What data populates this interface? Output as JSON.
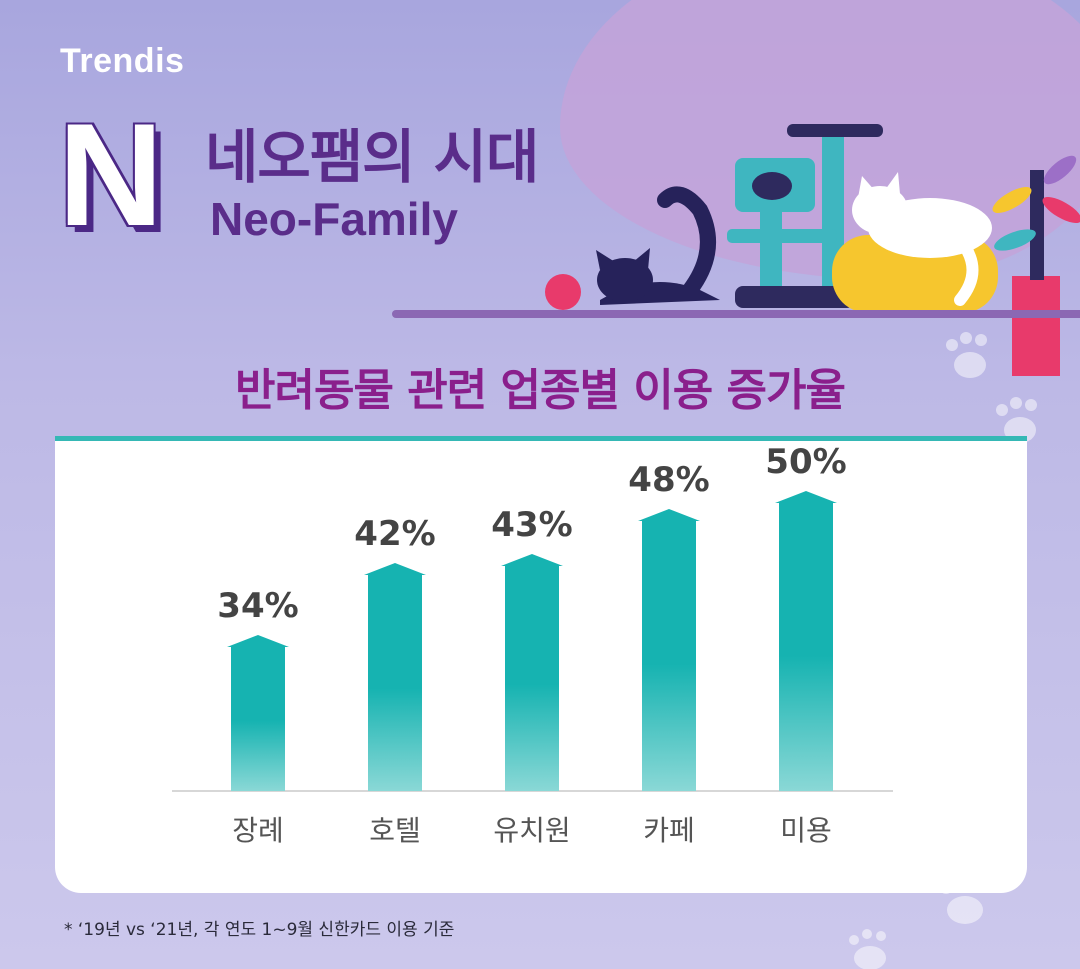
{
  "brand": "Trendis",
  "headline": {
    "letter": "N",
    "title_ko": "네오팸의 시대",
    "title_en": "Neo-Family"
  },
  "chart_data": {
    "type": "bar",
    "title": "반려동물 관련 업종별 이용 증가율",
    "categories": [
      "장례",
      "호텔",
      "유치원",
      "카페",
      "미용"
    ],
    "values": [
      34,
      42,
      43,
      48,
      50
    ],
    "value_labels": [
      "34%",
      "42%",
      "43%",
      "48%",
      "50%"
    ],
    "unit": "%",
    "ylim": [
      0,
      50
    ],
    "grid": false,
    "legend": "none",
    "bar_color_top": "#16b3b1",
    "bar_color_bottom": "#8ad8d6"
  },
  "footnote": "* ‘19년 vs ‘21년, 각 연도 1~9월 신한카드 이용 기준",
  "colors": {
    "title": "#5a2d8a",
    "subtitle": "#8a1f8c",
    "accent_line": "#35b8b5",
    "label": "#444444"
  }
}
